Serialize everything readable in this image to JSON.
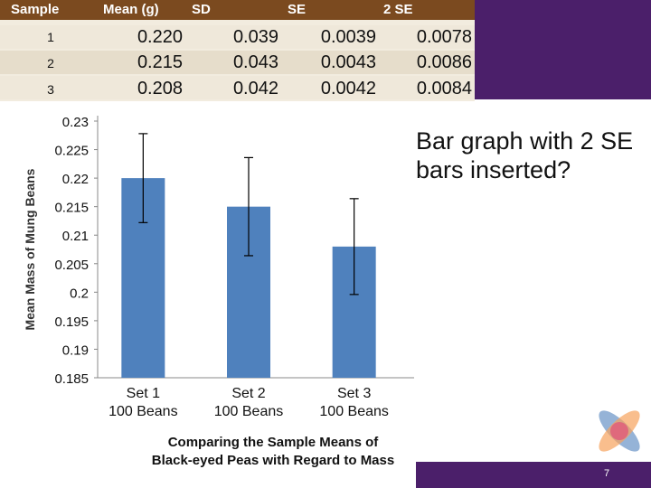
{
  "table": {
    "headers": [
      "Sample",
      "Mean  (g)",
      "SD",
      "SE",
      "2 SE"
    ],
    "rows": [
      {
        "sample": "1",
        "mean": "0.220",
        "sd": "0.039",
        "se": "0.0039",
        "two_se": "0.0078"
      },
      {
        "sample": "2",
        "mean": "0.215",
        "sd": "0.043",
        "se": "0.0043",
        "two_se": "0.0086"
      },
      {
        "sample": "3",
        "mean": "0.208",
        "sd": "0.042",
        "se": "0.0042",
        "two_se": "0.0084"
      }
    ]
  },
  "caption": "Bar graph with 2 SE bars inserted?",
  "page_number": "7",
  "colors": {
    "header_bg": "#7b4a1f",
    "band": "#4b1f6a",
    "bar": "#4f81bd",
    "row_alt": "#e8e1d3"
  },
  "chart_data": {
    "type": "bar",
    "categories": [
      "Set 1\n100 Beans",
      "Set 2\n100 Beans",
      "Set 3\n100 Beans"
    ],
    "category_lines": [
      [
        "Set 1",
        "100 Beans"
      ],
      [
        "Set 2",
        "100 Beans"
      ],
      [
        "Set 3",
        "100 Beans"
      ]
    ],
    "values": [
      0.22,
      0.215,
      0.208
    ],
    "errors": [
      0.0078,
      0.0086,
      0.0084
    ],
    "title": "Comparing the Sample Means of Black-eyed Peas with Regard to Mass",
    "title_lines": [
      "Comparing the Sample Means of",
      "Black-eyed Peas with Regard to Mass"
    ],
    "xlabel": "",
    "ylabel": "Mean Mass of Mung Beans",
    "ylim": [
      0.185,
      0.23
    ],
    "yticks": [
      "0.23",
      "0.225",
      "0.22",
      "0.215",
      "0.21",
      "0.205",
      "0.2",
      "0.195",
      "0.19",
      "0.185"
    ],
    "grid": false
  }
}
